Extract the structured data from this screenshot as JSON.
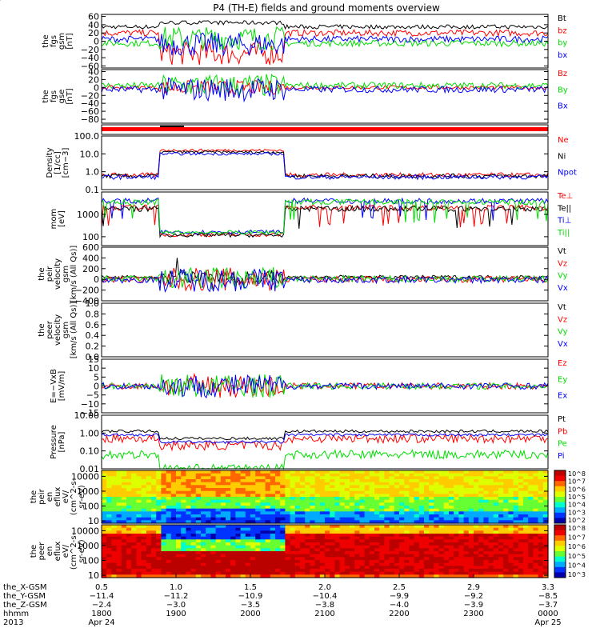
{
  "title": "P4 (TH-E) fields and ground moments overview",
  "colors": {
    "black": "#000000",
    "red": "#ff0000",
    "green": "#00dd00",
    "blue": "#0000ff",
    "axis": "#000000"
  },
  "chart_data": [
    {
      "type": "line",
      "ylabel": [
        "the",
        "fgs",
        "gsm",
        "[nT]"
      ],
      "yticks": [
        {
          "v": 60,
          "t": "60"
        },
        {
          "v": 40,
          "t": "40"
        },
        {
          "v": 20,
          "t": "20"
        },
        {
          "v": 0,
          "t": "0"
        },
        {
          "v": -20,
          "t": "−20"
        },
        {
          "v": -40,
          "t": "−40"
        },
        {
          "v": -60,
          "t": "−60"
        }
      ],
      "ylim": [
        -65,
        65
      ],
      "log": false,
      "series": [
        {
          "name": "Bt",
          "color": "black",
          "base": 40
        },
        {
          "name": "bz",
          "color": "red",
          "base": 20
        },
        {
          "name": "by",
          "color": "green",
          "base": -5
        },
        {
          "name": "bx",
          "color": "blue",
          "base": 5
        }
      ]
    },
    {
      "type": "line",
      "ylabel": [
        "the",
        "fgs",
        "gse",
        "[nT]"
      ],
      "yticks": [
        {
          "v": 40,
          "t": "40"
        },
        {
          "v": 20,
          "t": "20"
        },
        {
          "v": 0,
          "t": "0"
        },
        {
          "v": -20,
          "t": "−20"
        },
        {
          "v": -40,
          "t": "−40"
        },
        {
          "v": -60,
          "t": "−60"
        },
        {
          "v": -80,
          "t": "−80"
        }
      ],
      "ylim": [
        -90,
        45
      ],
      "log": false,
      "series": [
        {
          "name": "Bz",
          "color": "red",
          "base": 0
        },
        {
          "name": "By",
          "color": "green",
          "base": 5
        },
        {
          "name": "Bx",
          "color": "blue",
          "base": -5
        }
      ]
    },
    {
      "type": "bar-flag",
      "ylabel": [],
      "yticks": [],
      "ylim": [
        0,
        1
      ]
    },
    {
      "type": "line",
      "ylabel": [
        "Density",
        "[1/cc]",
        "[cm−3]"
      ],
      "yticks": [
        {
          "v": 100,
          "t": "100.0"
        },
        {
          "v": 10,
          "t": "10.0"
        },
        {
          "v": 1,
          "t": "1.0"
        },
        {
          "v": 0.1,
          "t": "0.1"
        }
      ],
      "ylim": [
        0.1,
        100
      ],
      "log": true,
      "series": [
        {
          "name": "Ne",
          "color": "red",
          "base": 0.4
        },
        {
          "name": "Ni",
          "color": "black",
          "base": 0.2
        },
        {
          "name": "Npot",
          "color": "blue",
          "base": 0.0
        }
      ]
    },
    {
      "type": "line",
      "ylabel": [
        "mom",
        "[eV]"
      ],
      "yticks": [
        {
          "v": 1000,
          "t": "1000"
        },
        {
          "v": 100,
          "t": "100"
        }
      ],
      "ylim": [
        40,
        10000
      ],
      "log": true,
      "series": [
        {
          "name": "Te⊥",
          "color": "red",
          "base": 3.3
        },
        {
          "name": "Te||",
          "color": "black",
          "base": 3.25
        },
        {
          "name": "Ti⊥",
          "color": "blue",
          "base": 3.6
        },
        {
          "name": "Ti||",
          "color": "green",
          "base": 3.55
        }
      ]
    },
    {
      "type": "line",
      "ylabel": [
        "the",
        "peir",
        "velocity",
        "gsm",
        "[km/s (All Qs)]"
      ],
      "yticks": [
        {
          "v": 600,
          "t": "600"
        },
        {
          "v": 400,
          "t": "400"
        },
        {
          "v": 200,
          "t": "200"
        },
        {
          "v": 0,
          "t": "0"
        },
        {
          "v": -200,
          "t": "−200"
        },
        {
          "v": -400,
          "t": "−400"
        }
      ],
      "ylim": [
        -400,
        600
      ],
      "log": false,
      "series": [
        {
          "name": "Vt",
          "color": "black",
          "base": 40
        },
        {
          "name": "Vz",
          "color": "red",
          "base": 0
        },
        {
          "name": "Vy",
          "color": "green",
          "base": 10
        },
        {
          "name": "Vx",
          "color": "blue",
          "base": -10
        }
      ]
    },
    {
      "type": "empty",
      "ylabel": [
        "the",
        "peer",
        "velocity",
        "gsm",
        "[km/s (All Qs)]"
      ],
      "yticks": [
        {
          "v": 1.0,
          "t": "1.0"
        },
        {
          "v": 0.8,
          "t": "0.8"
        },
        {
          "v": 0.6,
          "t": "0.6"
        },
        {
          "v": 0.4,
          "t": "0.4"
        },
        {
          "v": 0.2,
          "t": "0.2"
        },
        {
          "v": 0.0,
          "t": "0.0"
        }
      ],
      "ylim": [
        0,
        1
      ],
      "log": false,
      "series": [
        {
          "name": "Vt",
          "color": "black"
        },
        {
          "name": "Vz",
          "color": "red"
        },
        {
          "name": "Vy",
          "color": "green"
        },
        {
          "name": "Vx",
          "color": "blue"
        }
      ]
    },
    {
      "type": "line",
      "ylabel": [
        "E=−VxB",
        "[mV/m]"
      ],
      "yticks": [
        {
          "v": 15,
          "t": "15"
        },
        {
          "v": 10,
          "t": "10"
        },
        {
          "v": 5,
          "t": "5"
        },
        {
          "v": 0,
          "t": "0"
        },
        {
          "v": -5,
          "t": "−5"
        },
        {
          "v": -10,
          "t": "−10"
        },
        {
          "v": -15,
          "t": "−15"
        }
      ],
      "ylim": [
        -15,
        15
      ],
      "log": false,
      "series": [
        {
          "name": "Ez",
          "color": "red",
          "base": 0
        },
        {
          "name": "Ey",
          "color": "green",
          "base": 0
        },
        {
          "name": "Ex",
          "color": "blue",
          "base": 0
        }
      ]
    },
    {
      "type": "line",
      "ylabel": [
        "Pressure",
        "[nPa]"
      ],
      "yticks": [
        {
          "v": 10,
          "t": "10.00"
        },
        {
          "v": 1,
          "t": "1.00"
        },
        {
          "v": 0.1,
          "t": "0.10"
        },
        {
          "v": 0.01,
          "t": "0.01"
        }
      ],
      "ylim": [
        0.01,
        10
      ],
      "log": true,
      "series": [
        {
          "name": "Pt",
          "color": "black",
          "base": 0.1
        },
        {
          "name": "Pb",
          "color": "red",
          "base": -0.3
        },
        {
          "name": "Pe",
          "color": "green",
          "base": -1.2
        },
        {
          "name": "Pi",
          "color": "blue",
          "base": -0.1
        }
      ]
    },
    {
      "type": "heatmap",
      "ylabel": [
        "the",
        "peir",
        "en",
        "eflux",
        "eV/",
        "(cm^2-s-",
        "sr-eV)"
      ],
      "yticks": [
        {
          "v": 10000,
          "t": "10000"
        },
        {
          "v": 1000,
          "t": "1000"
        },
        {
          "v": 100,
          "t": "100"
        },
        {
          "v": 10,
          "t": "10"
        }
      ],
      "ylim": [
        7,
        25000
      ],
      "log": true,
      "cbticks": [
        "10^8",
        "10^7",
        "10^6",
        "10^5",
        "10^4",
        "10^3",
        "10^2"
      ]
    },
    {
      "type": "heatmap",
      "ylabel": [
        "the",
        "peer",
        "en",
        "eflux",
        "eV/",
        "(cm^2-s-",
        "sr-eV)"
      ],
      "yticks": [
        {
          "v": 10000,
          "t": "10000"
        },
        {
          "v": 1000,
          "t": "1000"
        },
        {
          "v": 100,
          "t": "100"
        },
        {
          "v": 10,
          "t": "10"
        }
      ],
      "ylim": [
        7,
        25000
      ],
      "log": true,
      "cbticks": [
        "10^8",
        "10^7",
        "10^6",
        "10^5",
        "10^4",
        "10^3"
      ]
    }
  ],
  "xaxis": {
    "row_labels": [
      "the_X-GSM",
      "the_Y-GSM",
      "the_Z-GSM",
      "hhmm",
      "2013"
    ],
    "columns": [
      [
        "0.5",
        "−11.4",
        "−2.4",
        "1800",
        "Apr 24"
      ],
      [
        "1.0",
        "−11.2",
        "−3.0",
        "1900",
        ""
      ],
      [
        "1.5",
        "−10.9",
        "−3.5",
        "2000",
        ""
      ],
      [
        "2.0",
        "−10.4",
        "−3.8",
        "2100",
        ""
      ],
      [
        "2.5",
        "−9.9",
        "−4.0",
        "2200",
        ""
      ],
      [
        "2.9",
        "−9.2",
        "−3.9",
        "2300",
        ""
      ],
      [
        "3.3",
        "−8.5",
        "−3.7",
        "0000",
        "Apr 25"
      ]
    ]
  }
}
